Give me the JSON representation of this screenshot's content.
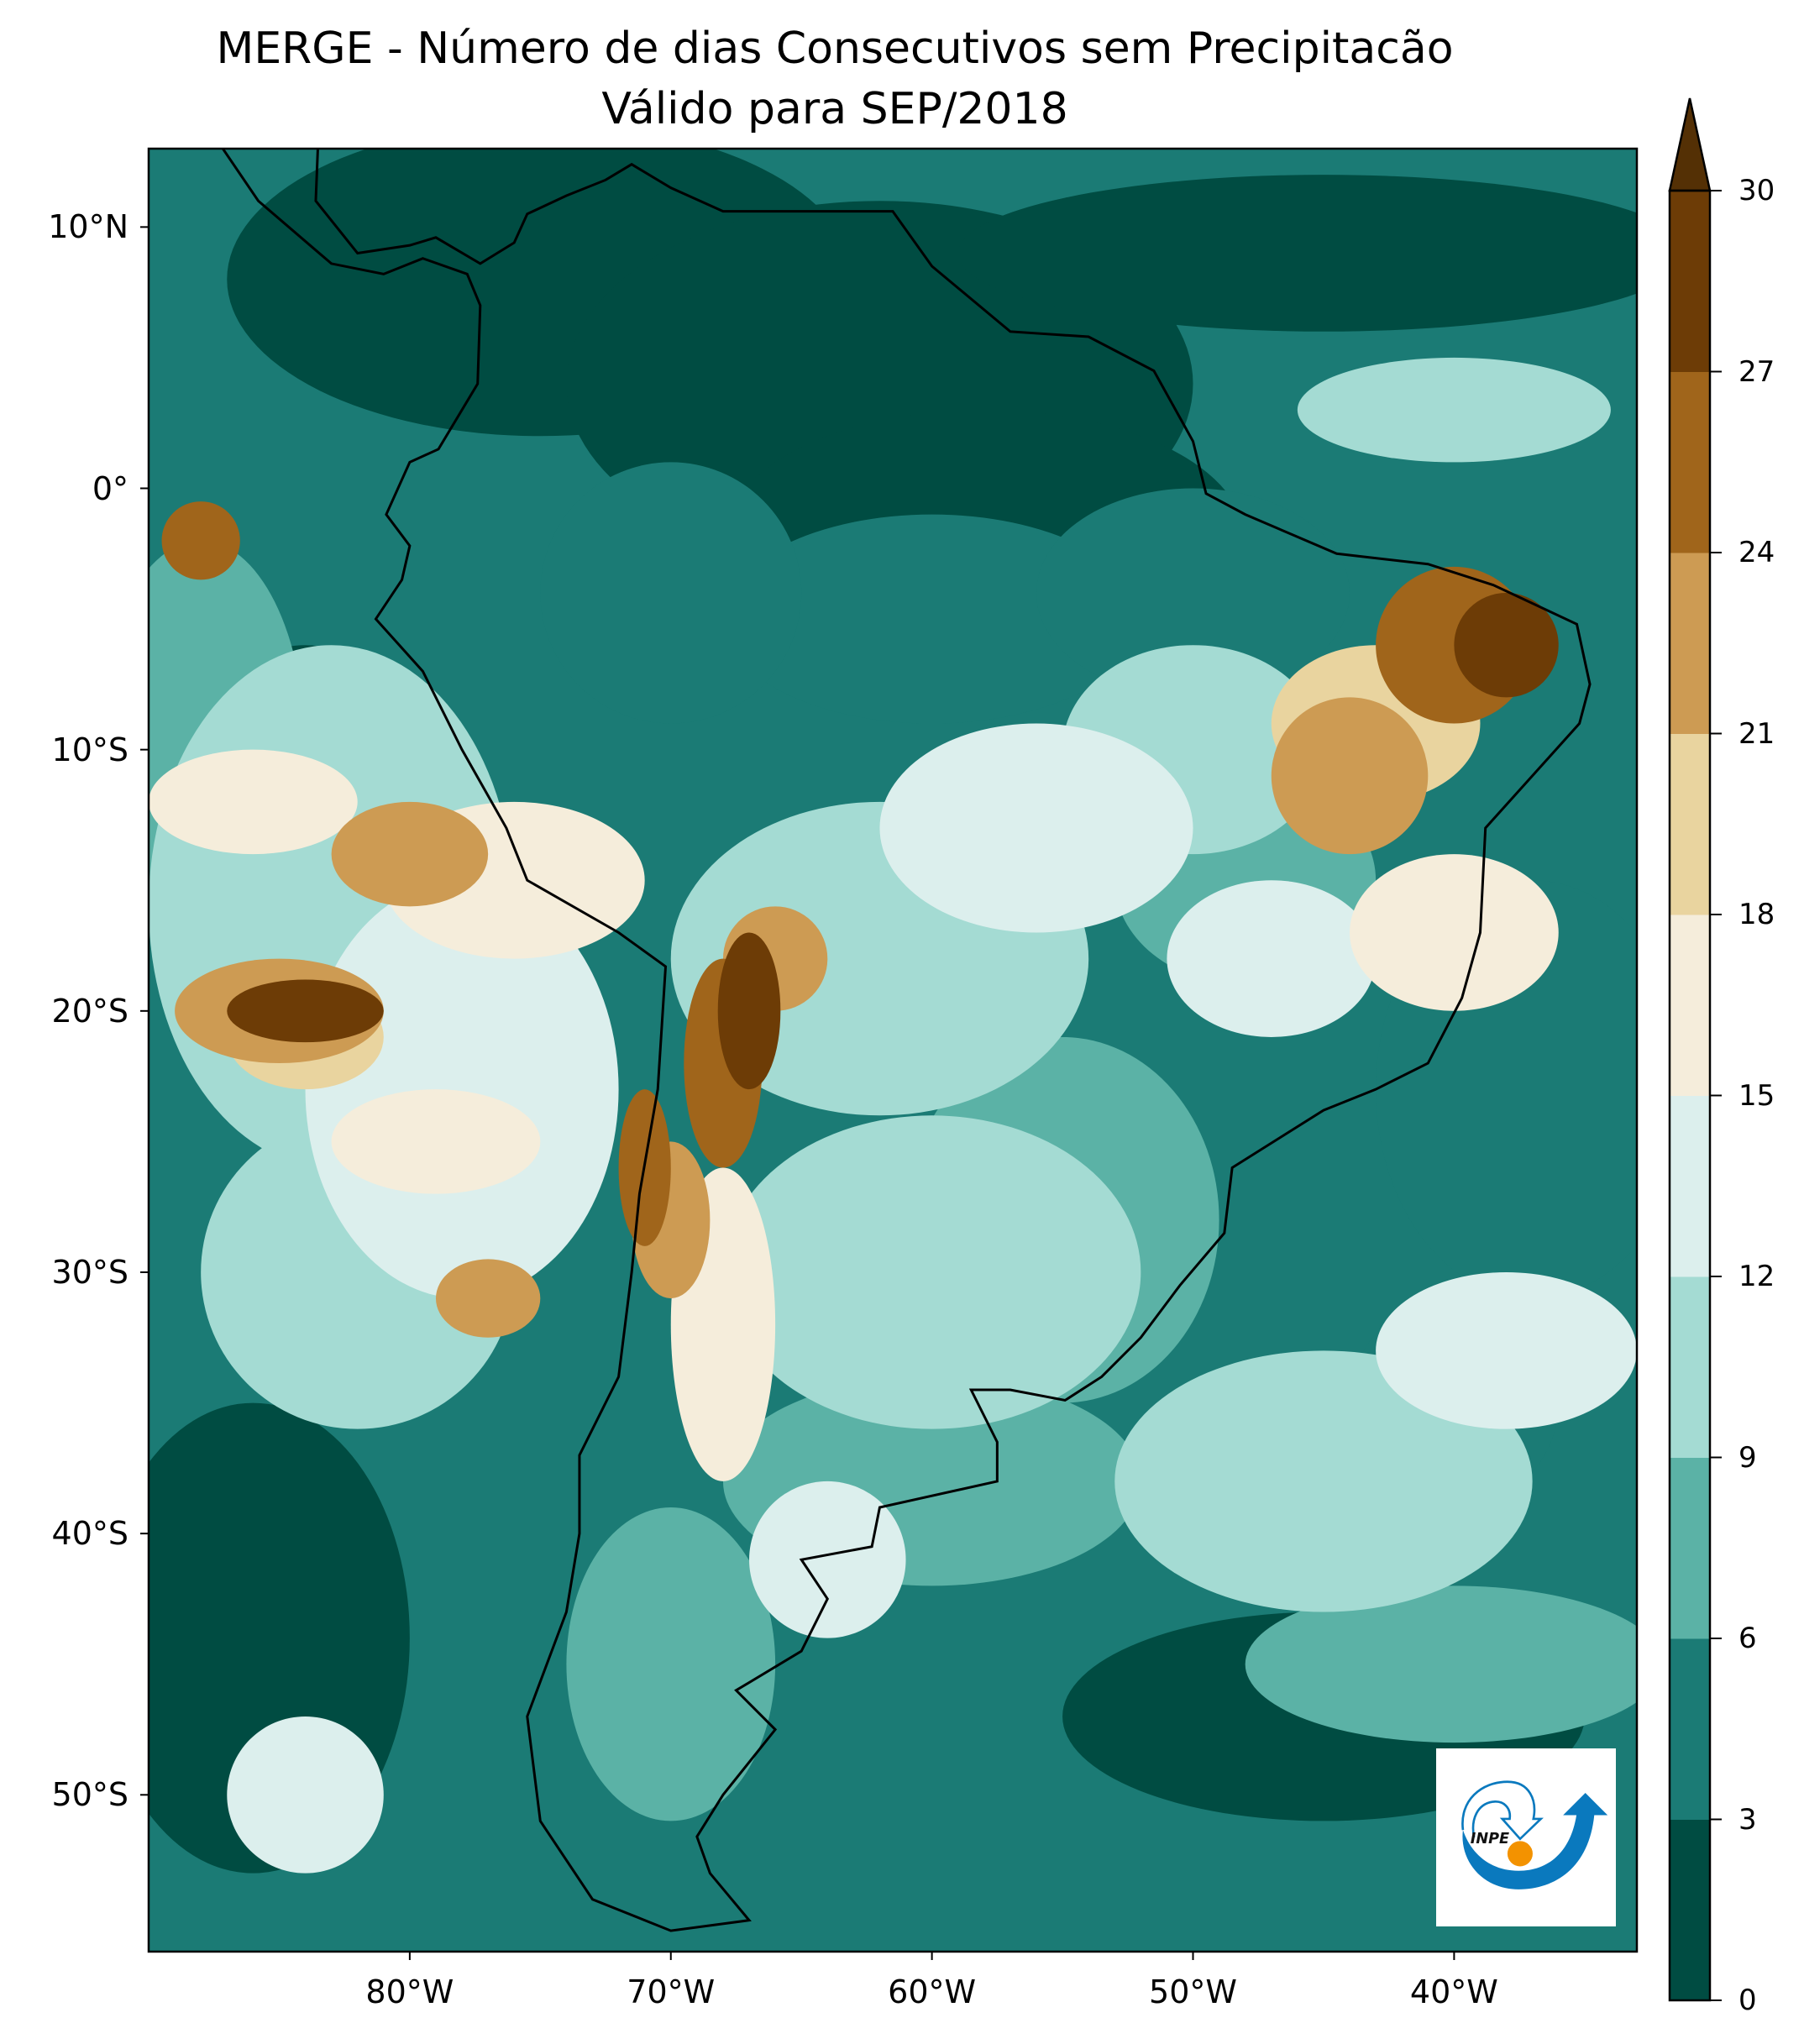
{
  "title": {
    "line1": "MERGE - Número de dias Consecutivos sem Precipitacão",
    "line2": "Válido para SEP/2018"
  },
  "axes": {
    "lat_labels": [
      "10°N",
      "0°",
      "10°S",
      "20°S",
      "30°S",
      "40°S",
      "50°S"
    ],
    "lat_values": [
      10,
      0,
      -10,
      -20,
      -30,
      -40,
      -50
    ],
    "lon_labels": [
      "80°W",
      "70°W",
      "60°W",
      "50°W",
      "40°W"
    ],
    "lon_values": [
      -80,
      -70,
      -60,
      -50,
      -40
    ],
    "lon_range": [
      -90,
      -33
    ],
    "lat_range": [
      -56,
      13
    ]
  },
  "colorbar": {
    "ticks": [
      "0",
      "3",
      "6",
      "9",
      "12",
      "15",
      "18",
      "21",
      "24",
      "27",
      "30"
    ],
    "colors": [
      "#004c42",
      "#1b7b75",
      "#5bb2a6",
      "#a4dbd3",
      "#dcefed",
      "#f5eddb",
      "#e9d49f",
      "#cd9b53",
      "#a0651b",
      "#6d3c06"
    ],
    "extend_color": "#543005",
    "extend": "max"
  },
  "logo": {
    "text": "INPE",
    "blue": "#0a79be",
    "orange": "#f39200"
  }
}
